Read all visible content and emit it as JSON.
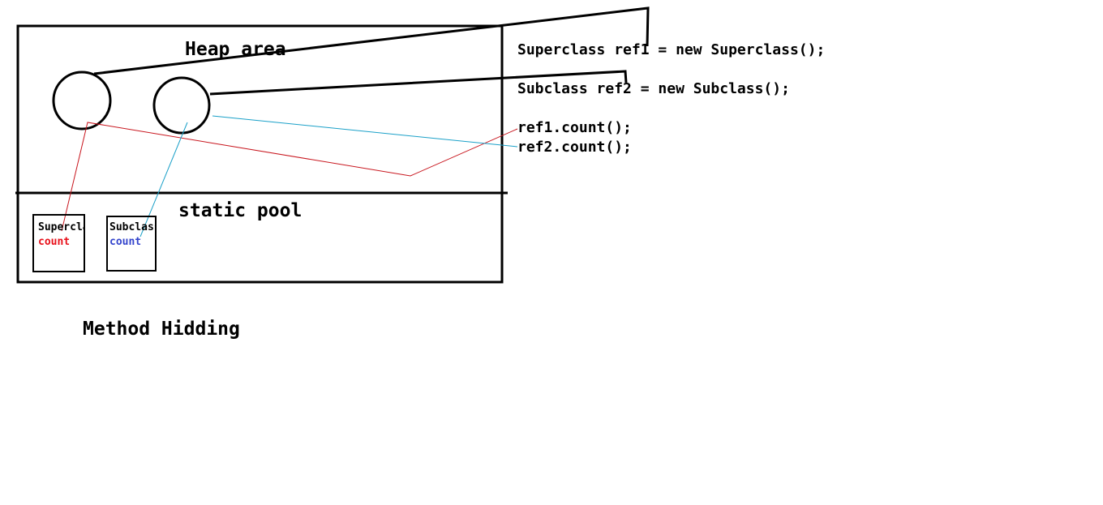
{
  "heap": {
    "title": "Heap area"
  },
  "static_pool": {
    "title": "static pool",
    "superclass_box": {
      "class_name": "Superclas",
      "field": "count",
      "field_color": "#e8101a"
    },
    "subclass_box": {
      "class_name": "Subclass",
      "field": "count",
      "field_color": "#3344cc"
    }
  },
  "code": {
    "line1": "Superclass ref1 = new Superclass();",
    "line2": "Subclass ref2 = new Subclass();",
    "line3": "ref1.count();",
    "line4": "ref2.count();"
  },
  "caption": "Method Hidding",
  "colors": {
    "ref1_link": "#c8161e",
    "ref2_link": "#1aa0c8",
    "outline": "#000000"
  }
}
